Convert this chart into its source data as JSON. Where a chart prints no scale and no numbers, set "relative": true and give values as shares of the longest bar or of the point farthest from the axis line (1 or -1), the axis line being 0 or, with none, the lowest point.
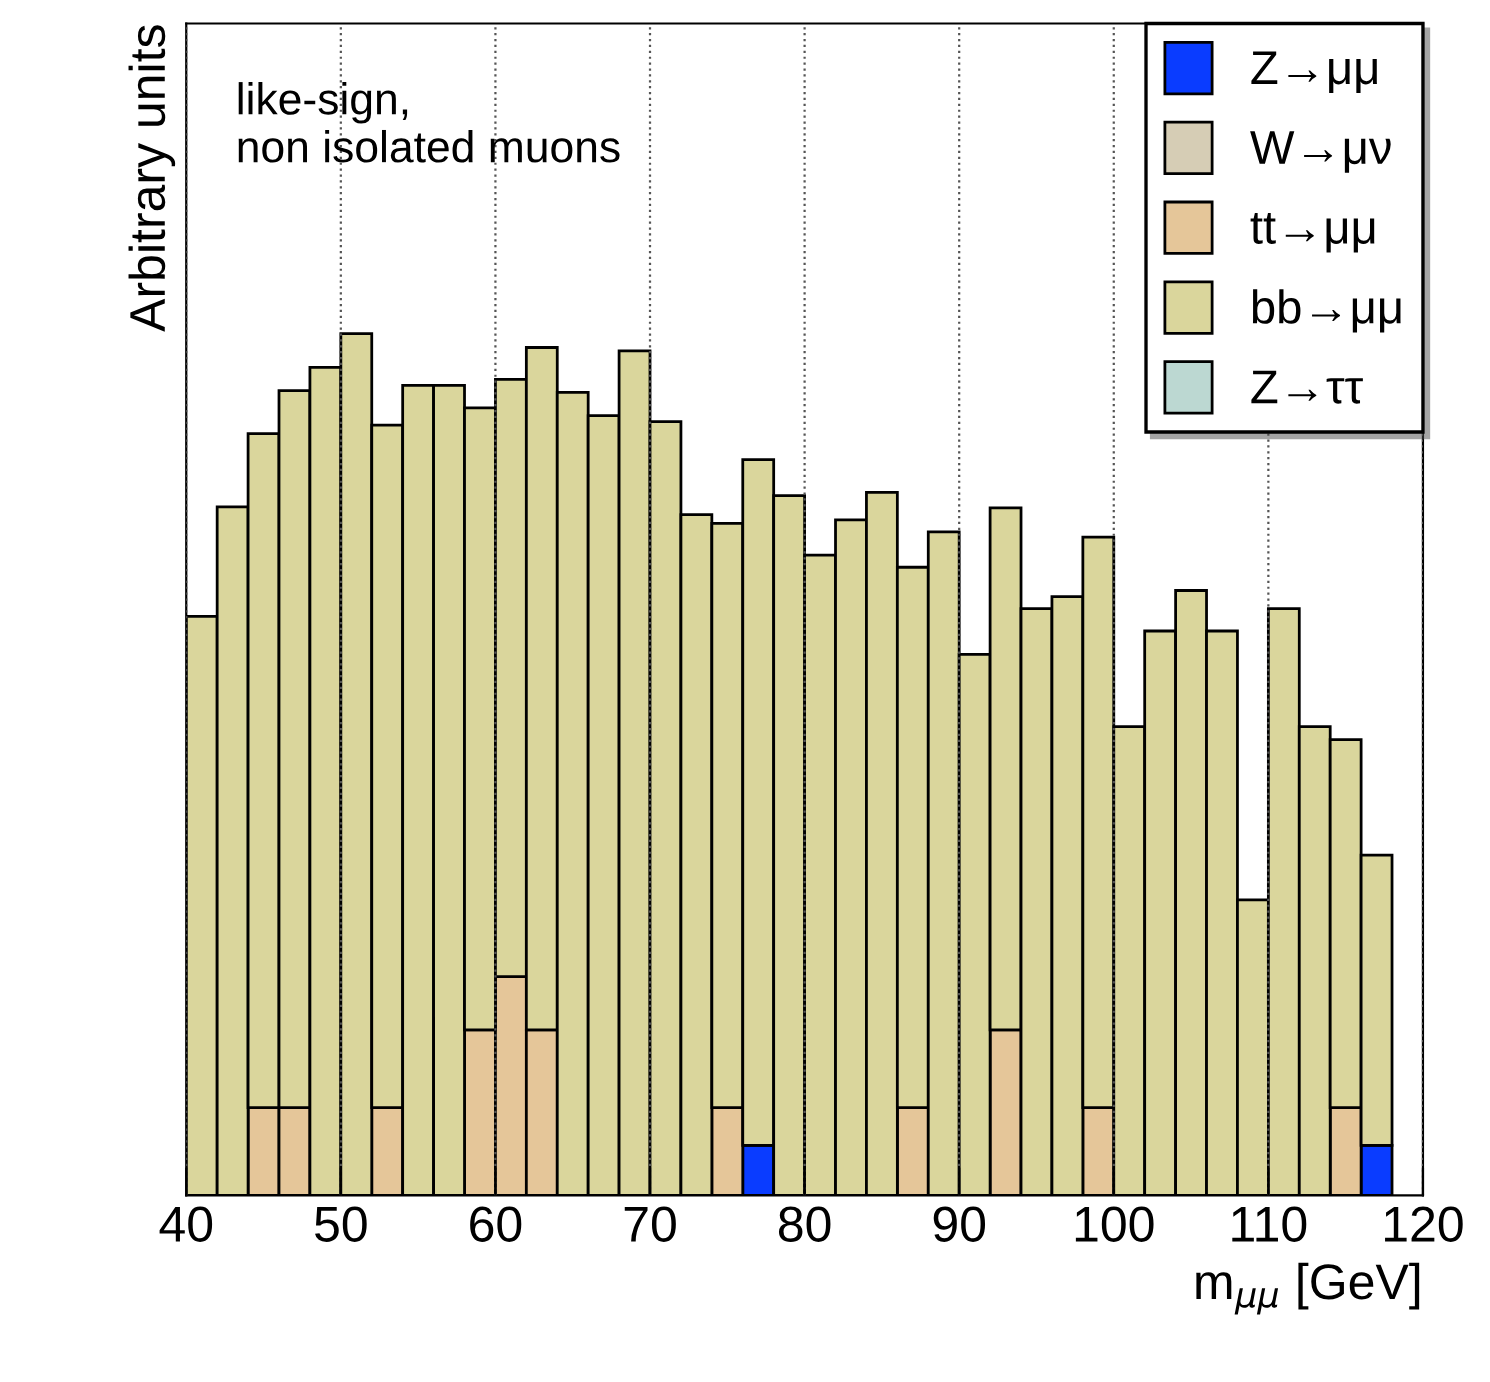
{
  "chart_data": {
    "type": "bar",
    "stacked": true,
    "relative": true,
    "xlabel": "m$_{μμ}$ [GeV]",
    "ylabel": "Arbitrary units",
    "annotations": [
      "like-sign,\nnon isolated muons"
    ],
    "x": [
      41,
      43,
      45,
      47,
      49,
      51,
      53,
      55,
      57,
      59,
      61,
      63,
      65,
      67,
      69,
      71,
      73,
      75,
      77,
      79,
      81,
      83,
      85,
      87,
      89,
      91,
      93,
      95,
      97,
      99,
      101,
      103,
      105,
      107,
      109,
      111,
      113,
      115,
      117
    ],
    "xlim": [
      40,
      120
    ],
    "xticks": [
      40,
      50,
      60,
      70,
      80,
      90,
      100,
      110,
      120
    ],
    "grid": "x",
    "legend": "top right",
    "series": [
      {
        "name": "Z→μμ",
        "color": "#0a3cff",
        "values": [
          0,
          0,
          0,
          0,
          0,
          0,
          0,
          0,
          0,
          0,
          0,
          0,
          0,
          0,
          0,
          0,
          0,
          0,
          0.058,
          0,
          0,
          0,
          0,
          0,
          0,
          0,
          0,
          0,
          0,
          0,
          0,
          0,
          0,
          0,
          0,
          0,
          0,
          0,
          0.058
        ]
      },
      {
        "name": "W→μν",
        "color": "#d6cdb5",
        "values": [
          0,
          0,
          0,
          0,
          0,
          0,
          0,
          0,
          0,
          0,
          0,
          0,
          0,
          0,
          0,
          0,
          0,
          0,
          0,
          0,
          0,
          0,
          0,
          0,
          0,
          0,
          0,
          0,
          0,
          0,
          0,
          0,
          0,
          0,
          0,
          0,
          0,
          0,
          0
        ]
      },
      {
        "name": "tt→μμ",
        "color": "#e5c699",
        "values": [
          0,
          0,
          0.102,
          0.102,
          0,
          0,
          0.102,
          0,
          0,
          0.192,
          0.254,
          0.192,
          0,
          0,
          0,
          0,
          0,
          0.102,
          0,
          0,
          0,
          0,
          0,
          0.102,
          0,
          0,
          0.192,
          0,
          0,
          0.102,
          0,
          0,
          0,
          0,
          0,
          0,
          0,
          0.102,
          0
        ]
      },
      {
        "name": "bb→μμ",
        "color": "#dad69c",
        "values": [
          0.672,
          0.799,
          0.782,
          0.832,
          0.961,
          1.0,
          0.792,
          0.94,
          0.94,
          0.722,
          0.693,
          0.792,
          0.932,
          0.905,
          0.98,
          0.898,
          0.79,
          0.678,
          0.796,
          0.812,
          0.743,
          0.784,
          0.816,
          0.627,
          0.77,
          0.628,
          0.606,
          0.681,
          0.695,
          0.662,
          0.544,
          0.655,
          0.702,
          0.655,
          0.343,
          0.681,
          0.544,
          0.427,
          0.337
        ]
      },
      {
        "name": "Z→ττ",
        "color": "#bcd8d2",
        "values": [
          0,
          0,
          0,
          0,
          0,
          0,
          0,
          0,
          0,
          0,
          0,
          0,
          0,
          0,
          0,
          0,
          0,
          0,
          0,
          0,
          0,
          0,
          0,
          0,
          0,
          0,
          0,
          0,
          0,
          0,
          0,
          0,
          0,
          0,
          0,
          0,
          0,
          0,
          0
        ]
      }
    ]
  }
}
